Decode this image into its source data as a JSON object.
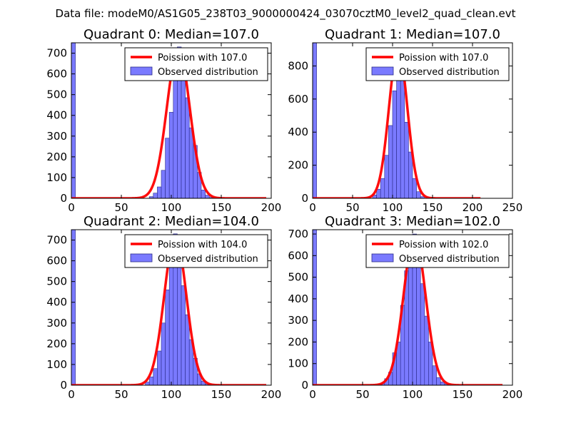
{
  "figure_title": "Data file: modeM0/AS1G05_238T03_9000000424_03070cztM0_level2_quad_clean.evt",
  "colors": {
    "fit_line": "#ff0000",
    "hist_fill": "#7a7aff",
    "hist_edge": "#2a2a88",
    "frame": "#000000",
    "background": "#ffffff"
  },
  "chart_data": [
    {
      "type": "bar",
      "title": "Quadrant 0: Median=107.0",
      "xlabel": "",
      "ylabel": "",
      "xlim": [
        0,
        200
      ],
      "ylim": [
        0,
        750
      ],
      "xticks": [
        0,
        50,
        100,
        150,
        200
      ],
      "yticks": [
        0,
        100,
        200,
        300,
        400,
        500,
        600,
        700
      ],
      "median": 107.0,
      "legend": [
        "Poission with 107.0",
        "Observed distribution"
      ],
      "legend_position": "top-right",
      "fit_peak": 720,
      "fit_sigma": 11.5,
      "fit_range": [
        0,
        195
      ],
      "zero_bin": {
        "x": 0,
        "width": 4,
        "value": 750
      },
      "bins": [
        {
          "x": 78,
          "value": 8
        },
        {
          "x": 82,
          "value": 25
        },
        {
          "x": 86,
          "value": 55
        },
        {
          "x": 90,
          "value": 135
        },
        {
          "x": 94,
          "value": 290
        },
        {
          "x": 98,
          "value": 415
        },
        {
          "x": 102,
          "value": 580
        },
        {
          "x": 106,
          "value": 730
        },
        {
          "x": 110,
          "value": 650
        },
        {
          "x": 114,
          "value": 485
        },
        {
          "x": 118,
          "value": 340
        },
        {
          "x": 122,
          "value": 255
        },
        {
          "x": 126,
          "value": 125
        },
        {
          "x": 130,
          "value": 40
        },
        {
          "x": 134,
          "value": 15
        },
        {
          "x": 138,
          "value": 4
        }
      ]
    },
    {
      "type": "bar",
      "title": "Quadrant 1: Median=107.0",
      "xlabel": "",
      "ylabel": "",
      "xlim": [
        0,
        250
      ],
      "ylim": [
        0,
        940
      ],
      "xticks": [
        0,
        50,
        100,
        150,
        200,
        250
      ],
      "yticks": [
        0,
        200,
        400,
        600,
        800
      ],
      "median": 107.0,
      "legend": [
        "Poission with 107.0",
        "Observed distribution"
      ],
      "legend_position": "top-right",
      "fit_peak": 905,
      "fit_sigma": 11.5,
      "fit_range": [
        0,
        210
      ],
      "zero_bin": {
        "x": 0,
        "width": 5,
        "value": 940
      },
      "bins": [
        {
          "x": 75,
          "value": 20
        },
        {
          "x": 80,
          "value": 55
        },
        {
          "x": 85,
          "value": 120
        },
        {
          "x": 90,
          "value": 260
        },
        {
          "x": 95,
          "value": 440
        },
        {
          "x": 100,
          "value": 650
        },
        {
          "x": 105,
          "value": 870
        },
        {
          "x": 110,
          "value": 720
        },
        {
          "x": 115,
          "value": 460
        },
        {
          "x": 120,
          "value": 280
        },
        {
          "x": 125,
          "value": 120
        },
        {
          "x": 130,
          "value": 40
        },
        {
          "x": 135,
          "value": 10
        }
      ]
    },
    {
      "type": "bar",
      "title": "Quadrant 2: Median=104.0",
      "xlabel": "",
      "ylabel": "",
      "xlim": [
        0,
        200
      ],
      "ylim": [
        0,
        750
      ],
      "xticks": [
        0,
        50,
        100,
        150,
        200
      ],
      "yticks": [
        0,
        100,
        200,
        300,
        400,
        500,
        600,
        700
      ],
      "median": 104.0,
      "legend": [
        "Poission with 104.0",
        "Observed distribution"
      ],
      "legend_position": "top-right",
      "fit_peak": 720,
      "fit_sigma": 11.0,
      "fit_range": [
        0,
        195
      ],
      "zero_bin": {
        "x": 0,
        "width": 4,
        "value": 750
      },
      "bins": [
        {
          "x": 74,
          "value": 15
        },
        {
          "x": 78,
          "value": 40
        },
        {
          "x": 82,
          "value": 80
        },
        {
          "x": 86,
          "value": 165
        },
        {
          "x": 90,
          "value": 300
        },
        {
          "x": 94,
          "value": 460
        },
        {
          "x": 98,
          "value": 590
        },
        {
          "x": 102,
          "value": 730
        },
        {
          "x": 106,
          "value": 590
        },
        {
          "x": 110,
          "value": 480
        },
        {
          "x": 114,
          "value": 340
        },
        {
          "x": 118,
          "value": 220
        },
        {
          "x": 122,
          "value": 130
        },
        {
          "x": 126,
          "value": 55
        },
        {
          "x": 130,
          "value": 20
        },
        {
          "x": 134,
          "value": 5
        }
      ]
    },
    {
      "type": "bar",
      "title": "Quadrant 3: Median=102.0",
      "xlabel": "",
      "ylabel": "",
      "xlim": [
        0,
        200
      ],
      "ylim": [
        0,
        720
      ],
      "xticks": [
        0,
        50,
        100,
        150,
        200
      ],
      "yticks": [
        0,
        100,
        200,
        300,
        400,
        500,
        600,
        700
      ],
      "median": 102.0,
      "legend": [
        "Poission with 102.0",
        "Observed distribution"
      ],
      "legend_position": "top-right",
      "fit_peak": 690,
      "fit_sigma": 11.0,
      "fit_range": [
        0,
        190
      ],
      "zero_bin": {
        "x": 0,
        "width": 4,
        "value": 720
      },
      "bins": [
        {
          "x": 68,
          "value": 10
        },
        {
          "x": 72,
          "value": 30
        },
        {
          "x": 76,
          "value": 60
        },
        {
          "x": 80,
          "value": 150
        },
        {
          "x": 84,
          "value": 200
        },
        {
          "x": 88,
          "value": 370
        },
        {
          "x": 92,
          "value": 530
        },
        {
          "x": 96,
          "value": 620
        },
        {
          "x": 100,
          "value": 700
        },
        {
          "x": 104,
          "value": 650
        },
        {
          "x": 108,
          "value": 470
        },
        {
          "x": 112,
          "value": 320
        },
        {
          "x": 116,
          "value": 200
        },
        {
          "x": 120,
          "value": 90
        },
        {
          "x": 124,
          "value": 35
        },
        {
          "x": 128,
          "value": 15
        },
        {
          "x": 132,
          "value": 5
        }
      ]
    }
  ]
}
